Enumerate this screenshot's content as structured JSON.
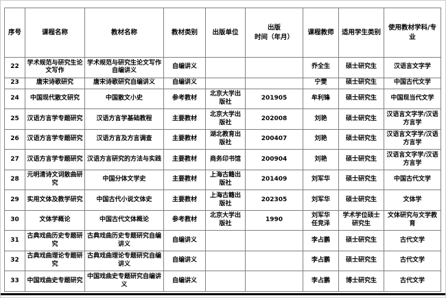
{
  "colors": {
    "background": "#ffffff",
    "text": "#000000",
    "table_border": "#7f7f7f",
    "bottom_rule": "#000000",
    "page_frame": "#cccccc"
  },
  "table": {
    "columns": [
      "序号",
      "课程名称",
      "教材名称",
      "教材类别",
      "出版单位",
      "出版\n时间（年月）",
      "课程教师",
      "适用学生类别",
      "使用教材学科/专业"
    ],
    "rows": [
      [
        "22",
        "学术规范与研究生论文写作",
        "学术规范与研究生论文写作自编讲义",
        "自编讲义",
        "",
        "",
        "乔全生",
        "硕士研究生",
        "汉语言文字学"
      ],
      [
        "23",
        "唐宋诗歌研究",
        "唐宋诗歌研究自编讲义",
        "自编讲义",
        "",
        "",
        "宁雯",
        "硕士研究生",
        "中国古代文学"
      ],
      [
        "24",
        "中国现代散文研究",
        "中国散文小史",
        "参考教材",
        "北京大学出版社",
        "201905",
        "牟利锋",
        "硕士研究生",
        "中国现当代文学"
      ],
      [
        "25",
        "汉语方言学专题研究",
        "汉语方言学基础教程",
        "主要教材",
        "北京大学出版社",
        "202008",
        "刘艳",
        "硕士研究生",
        "汉语言文字学/汉语方言学"
      ],
      [
        "26",
        "汉语方言学专题研究",
        "汉语方言及方言调查",
        "主要教材",
        "湖北教育出版社",
        "200407",
        "刘艳",
        "硕士研究生",
        "汉语言文字学/汉语方言学"
      ],
      [
        "27",
        "汉语方言学专题研究",
        "汉语方言研究的方法与实践",
        "主要教材",
        "商务印书馆",
        "200904",
        "刘艳",
        "硕士研究生",
        "汉语言文字学/汉语方言学"
      ],
      [
        "28",
        "元明清诗文词散曲研究",
        "中国分体文学史",
        "主要教材",
        "上海古籍出版社",
        "201409",
        "刘军华",
        "硕士研究生",
        "中国古代文学"
      ],
      [
        "29",
        "实用文体及教学研究",
        "中国古代小说文体史",
        "主要教材",
        "上海古籍出版社",
        "202305",
        "刘军华",
        "硕士研究生",
        "文体学"
      ],
      [
        "30",
        "文体学概论",
        "中国古代文体概论",
        "参考教材",
        "北京大学出版社",
        "1990",
        "刘军华\n任竞泽",
        "学术学位硕士研究生",
        "文体研究与文学教育"
      ],
      [
        "31",
        "古典戏曲历史专题研究",
        "古典戏曲历史专题研究自编讲义",
        "自编讲义",
        "",
        "",
        "李占鹏",
        "硕士研究生",
        "古代文学"
      ],
      [
        "32",
        "古典戏曲理论专题研究",
        "古典戏曲理论专题研究自编讲义",
        "自编讲义",
        "",
        "",
        "李占鹏",
        "硕士研究生",
        "古代文学"
      ],
      [
        "33",
        "中国戏曲史专题研究",
        "中国戏曲史专题研究自编讲义",
        "自编讲义",
        "",
        "",
        "李占鹏",
        "博士研究生",
        "古代文学"
      ]
    ]
  }
}
